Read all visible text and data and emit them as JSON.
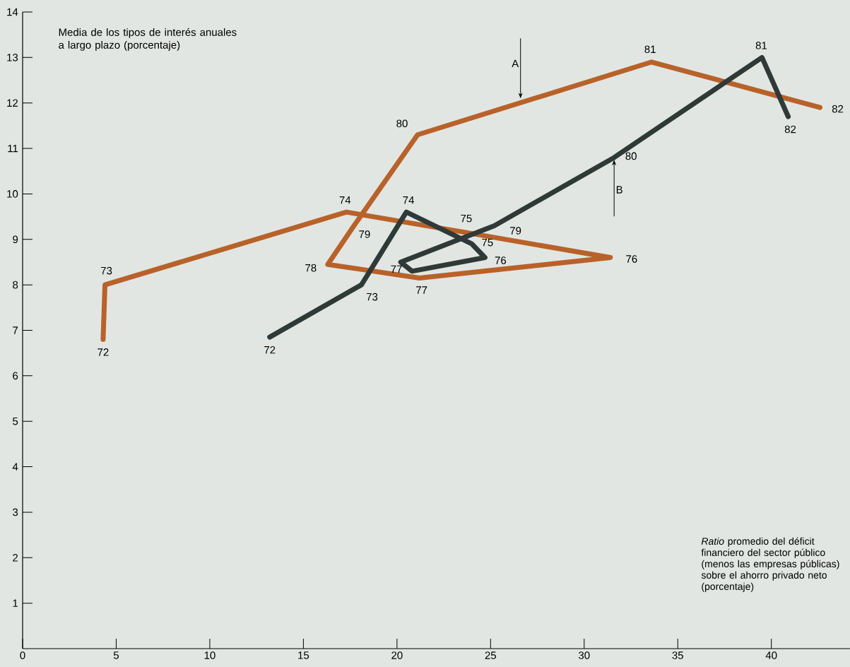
{
  "chart_data": {
    "type": "line",
    "xlabel": "*Ratio* promedio del déficit financiero del sector público (menos las empresas públicas) sobre el ahorro privado neto (porcentaje)",
    "ylabel": "Media de los tipos de interés anuales a largo plazo (porcentaje)",
    "xlim": [
      0,
      44.2
    ],
    "ylim": [
      0,
      14
    ],
    "xticks": [
      0,
      5,
      10,
      15,
      20,
      25,
      30,
      35,
      40
    ],
    "yticks": [
      1,
      2,
      3,
      4,
      5,
      6,
      7,
      8,
      9,
      10,
      11,
      12,
      13,
      14
    ],
    "line_style": "solid",
    "series": [
      {
        "color": "#b8622a",
        "x": [
          4.3,
          4.4,
          17.3,
          23.7,
          31.4,
          21.2,
          16.3,
          17.7,
          21.1,
          33.6,
          42.6
        ],
        "values": [
          6.8,
          8.0,
          9.6,
          9.15,
          8.6,
          8.15,
          8.45,
          9.3,
          11.3,
          12.9,
          11.9
        ]
      },
      {
        "color": "#2f3a38",
        "x": [
          13.2,
          18.1,
          20.5,
          24.0,
          24.7,
          20.8,
          20.2,
          25.2,
          31.6,
          39.5,
          40.9
        ],
        "values": [
          6.85,
          8.0,
          9.6,
          8.9,
          8.6,
          8.3,
          8.5,
          9.3,
          10.8,
          13.0,
          11.7
        ]
      }
    ],
    "annotations": [
      {
        "text": "72",
        "x": 4.3,
        "y": 6.8
      },
      {
        "text": "73",
        "x": 4.4,
        "y": 8.0
      },
      {
        "text": "74",
        "x": 17.3,
        "y": 9.6
      },
      {
        "text": "75",
        "x": 23.7,
        "y": 9.15
      },
      {
        "text": "76",
        "x": 31.4,
        "y": 8.6
      },
      {
        "text": "77",
        "x": 21.2,
        "y": 8.15
      },
      {
        "text": "78",
        "x": 16.3,
        "y": 8.45
      },
      {
        "text": "79",
        "x": 17.7,
        "y": 9.3
      },
      {
        "text": "80",
        "x": 21.1,
        "y": 11.3
      },
      {
        "text": "81",
        "x": 33.6,
        "y": 12.9
      },
      {
        "text": "82",
        "x": 42.6,
        "y": 11.9
      },
      {
        "text": "72",
        "x": 13.2,
        "y": 6.85
      },
      {
        "text": "73",
        "x": 18.1,
        "y": 8.0
      },
      {
        "text": "74",
        "x": 20.5,
        "y": 9.6
      },
      {
        "text": "75",
        "x": 24.0,
        "y": 8.9
      },
      {
        "text": "76",
        "x": 24.7,
        "y": 8.6
      },
      {
        "text": "77",
        "x": 20.8,
        "y": 8.3
      },
      {
        "text": "79",
        "x": 25.2,
        "y": 9.3
      },
      {
        "text": "80",
        "x": 31.6,
        "y": 10.8
      },
      {
        "text": "81",
        "x": 39.5,
        "y": 13.0
      },
      {
        "text": "82",
        "x": 40.9,
        "y": 11.7
      },
      {
        "text": "A",
        "x": 26.6,
        "y": 12.1
      },
      {
        "text": "B",
        "x": 31.6,
        "y": 10.75
      }
    ]
  }
}
